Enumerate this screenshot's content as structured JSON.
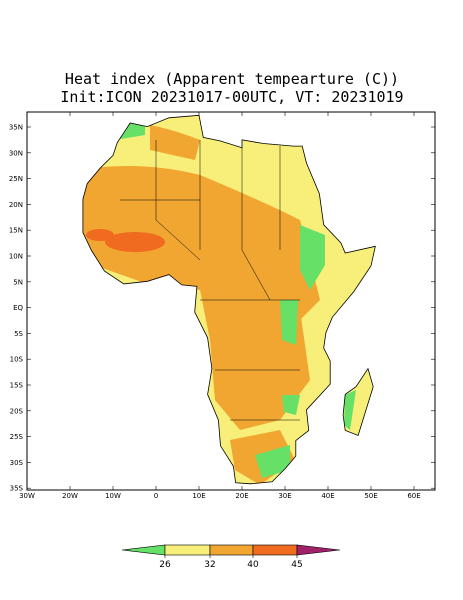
{
  "title": "Heat index (Apparent tempearture (C))",
  "subtitle": "Init:ICON 20231017-00UTC, VT: 20231019",
  "lat_labels": [
    "35N",
    "30N",
    "25N",
    "20N",
    "15N",
    "10N",
    "5N",
    "EQ",
    "5S",
    "10S",
    "15S",
    "20S",
    "25S",
    "30S",
    "35S"
  ],
  "lon_labels": [
    "30W",
    "20W",
    "10W",
    "0",
    "10E",
    "20E",
    "30E",
    "40E",
    "50E",
    "60E"
  ],
  "colorbar": {
    "levels": [
      26,
      32,
      40,
      45
    ]
  }
}
